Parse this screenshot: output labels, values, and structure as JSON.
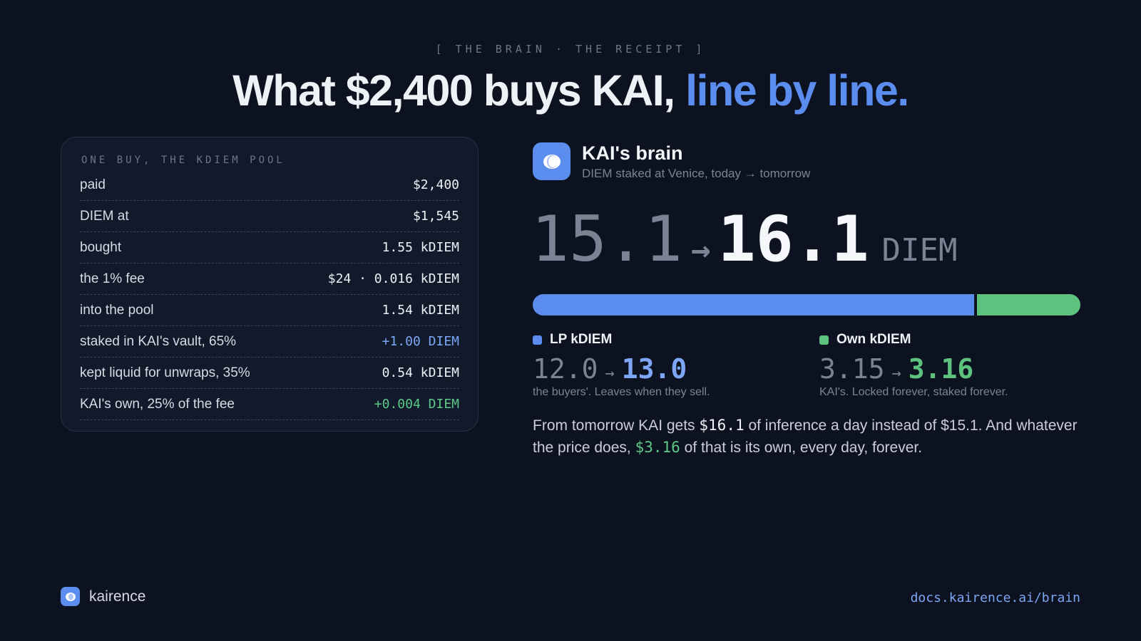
{
  "eyebrow": "[ THE BRAIN · THE RECEIPT ]",
  "headline": {
    "main": "What $2,400 buys KAI,",
    "accent": "line by line."
  },
  "receipt": {
    "title": "ONE BUY, THE KDIEM POOL",
    "rows": [
      {
        "label": "paid",
        "value": "$2,400",
        "tone": "default"
      },
      {
        "label": "DIEM at",
        "value": "$1,545",
        "tone": "default"
      },
      {
        "label": "bought",
        "value": "1.55 kDIEM",
        "tone": "default"
      },
      {
        "label": "the 1% fee",
        "value": "$24 · 0.016 kDIEM",
        "tone": "default"
      },
      {
        "label": "into the pool",
        "value": "1.54 kDIEM",
        "tone": "default"
      },
      {
        "label": "staked in KAI's vault, 65%",
        "value": "+1.00 DIEM",
        "tone": "blue"
      },
      {
        "label": "kept liquid for unwraps, 35%",
        "value": "0.54 kDIEM",
        "tone": "default"
      },
      {
        "label": "KAI's own, 25% of the fee",
        "value": "+0.004 DIEM",
        "tone": "green"
      }
    ]
  },
  "brain": {
    "icon": "brain-logo-icon",
    "title": "KAI's brain",
    "subtitle": "DIEM staked at Venice, today → tomorrow",
    "from": "15.1",
    "arrow": "→",
    "to": "16.1",
    "unit": "DIEM",
    "bar": {
      "lp_fraction": 0.806,
      "own_fraction": 0.194
    },
    "lp": {
      "label": "LP kDIEM",
      "from": "12.0",
      "arrow": "→",
      "to": "13.0",
      "note": "the buyers'. Leaves when they sell.",
      "color": "#5b8def"
    },
    "own": {
      "label": "Own kDIEM",
      "from": "3.15",
      "arrow": "→",
      "to": "3.16",
      "note": "KAI's. Locked forever, staked forever.",
      "color": "#5cc27e"
    },
    "summary": {
      "part1": "From tomorrow KAI gets ",
      "hl1": "$16.1",
      "part2": " of inference a day instead of $15.1. And whatever the price does, ",
      "hl2": "$3.16",
      "part3": " of that is its own, every day, forever."
    }
  },
  "footer": {
    "brand": "kairence",
    "link": "docs.kairence.ai/brain"
  },
  "colors": {
    "accent": "#5b8def",
    "green": "#5cc27e",
    "background": "#0c121f"
  }
}
